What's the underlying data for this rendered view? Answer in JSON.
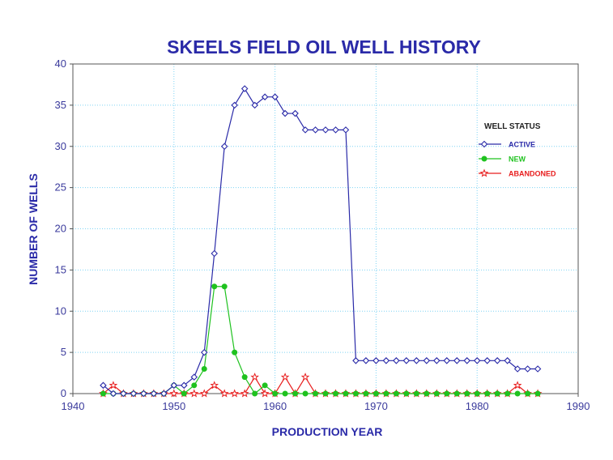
{
  "chart_data": {
    "type": "line",
    "title": "SKEELS FIELD OIL WELL HISTORY",
    "xlabel": "PRODUCTION YEAR",
    "ylabel": "NUMBER OF WELLS",
    "xlim": [
      1940,
      1990
    ],
    "ylim": [
      0,
      40
    ],
    "xticks": [
      1940,
      1950,
      1960,
      1970,
      1980,
      1990
    ],
    "yticks": [
      0,
      5,
      10,
      15,
      20,
      25,
      30,
      35,
      40
    ],
    "grid": true,
    "legend_title": "WELL STATUS",
    "legend_position": "right",
    "series": [
      {
        "name": "ACTIVE",
        "color": "#2a2aa8",
        "marker": "diamond",
        "x": [
          1943,
          1944,
          1945,
          1946,
          1947,
          1948,
          1949,
          1950,
          1951,
          1952,
          1953,
          1954,
          1955,
          1956,
          1957,
          1958,
          1959,
          1960,
          1961,
          1962,
          1963,
          1964,
          1965,
          1966,
          1967,
          1968,
          1969,
          1970,
          1971,
          1972,
          1973,
          1974,
          1975,
          1976,
          1977,
          1978,
          1979,
          1980,
          1981,
          1982,
          1983,
          1984,
          1985,
          1986
        ],
        "values": [
          1,
          0,
          0,
          0,
          0,
          0,
          0,
          1,
          1,
          2,
          5,
          17,
          30,
          35,
          37,
          35,
          36,
          36,
          34,
          34,
          32,
          32,
          32,
          32,
          32,
          4,
          4,
          4,
          4,
          4,
          4,
          4,
          4,
          4,
          4,
          4,
          4,
          4,
          4,
          4,
          4,
          3,
          3,
          3
        ]
      },
      {
        "name": "NEW",
        "color": "#1fc21f",
        "marker": "circle",
        "x": [
          1943,
          1944,
          1945,
          1946,
          1947,
          1948,
          1949,
          1950,
          1951,
          1952,
          1953,
          1954,
          1955,
          1956,
          1957,
          1958,
          1959,
          1960,
          1961,
          1962,
          1963,
          1964,
          1965,
          1966,
          1967,
          1968,
          1969,
          1970,
          1971,
          1972,
          1973,
          1974,
          1975,
          1976,
          1977,
          1978,
          1979,
          1980,
          1981,
          1982,
          1983,
          1984,
          1985,
          1986
        ],
        "values": [
          0,
          0,
          0,
          0,
          0,
          0,
          0,
          1,
          0,
          1,
          3,
          13,
          13,
          5,
          2,
          0,
          1,
          0,
          0,
          0,
          0,
          0,
          0,
          0,
          0,
          0,
          0,
          0,
          0,
          0,
          0,
          0,
          0,
          0,
          0,
          0,
          0,
          0,
          0,
          0,
          0,
          0,
          0,
          0
        ]
      },
      {
        "name": "ABANDONED",
        "color": "#e81e1e",
        "marker": "star",
        "x": [
          1943,
          1944,
          1945,
          1946,
          1947,
          1948,
          1949,
          1950,
          1951,
          1952,
          1953,
          1954,
          1955,
          1956,
          1957,
          1958,
          1959,
          1960,
          1961,
          1962,
          1963,
          1964,
          1965,
          1966,
          1967,
          1968,
          1969,
          1970,
          1971,
          1972,
          1973,
          1974,
          1975,
          1976,
          1977,
          1978,
          1979,
          1980,
          1981,
          1982,
          1983,
          1984,
          1985,
          1986
        ],
        "values": [
          0,
          1,
          0,
          0,
          0,
          0,
          0,
          0,
          0,
          0,
          0,
          1,
          0,
          0,
          0,
          2,
          0,
          0,
          2,
          0,
          2,
          0,
          0,
          0,
          0,
          0,
          0,
          0,
          0,
          0,
          0,
          0,
          0,
          0,
          0,
          0,
          0,
          0,
          0,
          0,
          0,
          1,
          0,
          0
        ]
      }
    ]
  }
}
